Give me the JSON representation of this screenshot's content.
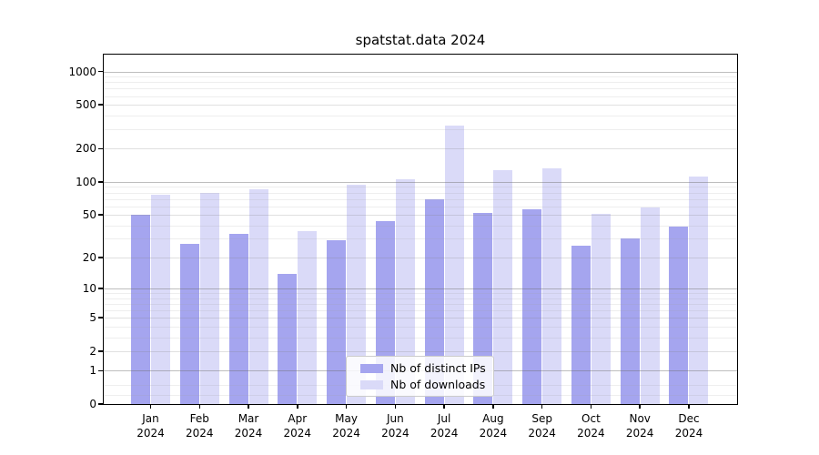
{
  "chart_data": {
    "type": "bar",
    "title": "spatstat.data 2024",
    "categories": [
      "Jan",
      "Feb",
      "Mar",
      "Apr",
      "May",
      "Jun",
      "Jul",
      "Aug",
      "Sep",
      "Oct",
      "Nov",
      "Dec"
    ],
    "year": "2024",
    "series": [
      {
        "name": "Nb of distinct IPs",
        "slug": "distinct-ips",
        "color": "#a5a5ef",
        "values": [
          50,
          27,
          33,
          14,
          29,
          44,
          69,
          52,
          56,
          26,
          30,
          39
        ]
      },
      {
        "name": "Nb of downloads",
        "slug": "downloads",
        "color": "#dadaf8",
        "values": [
          76,
          80,
          85,
          35,
          94,
          105,
          323,
          127,
          133,
          51,
          58,
          111
        ]
      }
    ],
    "xlabel": "",
    "ylabel": "",
    "yscale": "log1p",
    "ylim": [
      0,
      1380
    ],
    "yticks": [
      0,
      1,
      2,
      5,
      10,
      20,
      50,
      100,
      200,
      500,
      1000
    ],
    "grid": "horizontal, major at decades + faint minors, drawn over bars",
    "legend_position": "lower center",
    "colors": {
      "axis": "#000000",
      "background": "#ffffff",
      "grid_major": "#6e6e6e",
      "grid_minor": "#a0a0a0"
    }
  }
}
